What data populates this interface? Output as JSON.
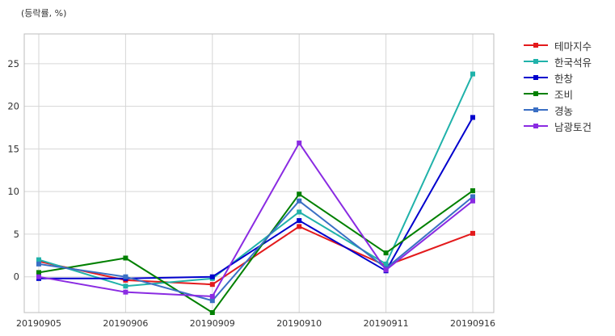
{
  "unit_label": "(등락률, %)",
  "chart_data": {
    "type": "line",
    "categories": [
      "20190905",
      "20190906",
      "20190909",
      "20190910",
      "20190911",
      "20190916"
    ],
    "ylim": [
      -4.2,
      28.5
    ],
    "yticks": [
      0,
      5,
      10,
      15,
      20,
      25
    ],
    "grid": true,
    "legend_position": "outside-top-right",
    "series": [
      {
        "name": "테마지수",
        "color": "#e31a1c",
        "values": [
          1.8,
          -0.4,
          -0.9,
          5.9,
          1.3,
          5.1
        ]
      },
      {
        "name": "한국석유",
        "color": "#20b2aa",
        "values": [
          2.0,
          -1.1,
          -0.2,
          7.6,
          1.5,
          23.8
        ]
      },
      {
        "name": "한창",
        "color": "#0000cd",
        "values": [
          -0.2,
          -0.2,
          0.0,
          6.6,
          0.7,
          18.7
        ]
      },
      {
        "name": "조비",
        "color": "#008000",
        "values": [
          0.5,
          2.2,
          -4.2,
          9.7,
          2.8,
          10.1
        ]
      },
      {
        "name": "경농",
        "color": "#3a6fc4",
        "values": [
          1.5,
          0.0,
          -2.8,
          8.9,
          1.0,
          9.4
        ]
      },
      {
        "name": "남광토건",
        "color": "#8a2be2",
        "values": [
          0.0,
          -1.8,
          -2.3,
          15.7,
          0.8,
          8.9
        ]
      }
    ]
  }
}
